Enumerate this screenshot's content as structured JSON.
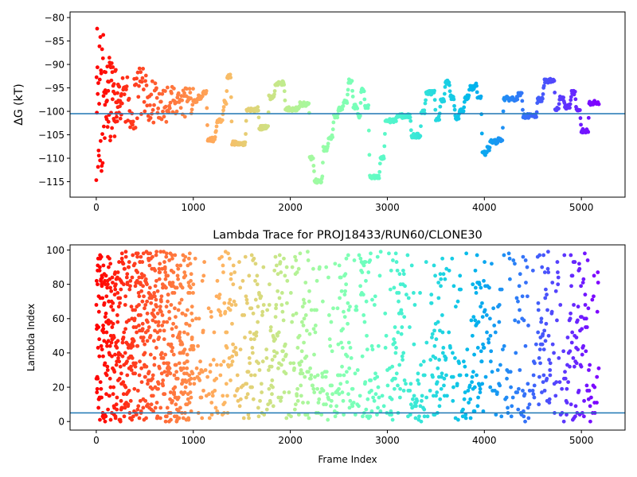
{
  "chart_data": [
    {
      "type": "scatter",
      "title": "",
      "xlabel": "",
      "ylabel": "ΔG (kT)",
      "xlim": [
        -270,
        5450
      ],
      "ylim": [
        -118.3,
        -78.8
      ],
      "xticks": [
        0,
        1000,
        2000,
        3000,
        4000,
        5000
      ],
      "xtick_labels": [
        "0",
        "1000",
        "2000",
        "3000",
        "4000",
        "5000"
      ],
      "yticks": [
        -115,
        -110,
        -105,
        -100,
        -95,
        -90,
        -85,
        -80
      ],
      "ytick_labels": [
        "−115",
        "−110",
        "−105",
        "−100",
        "−95",
        "−90",
        "−85",
        "−80"
      ],
      "reference_line_y": -100.5,
      "reference_line_color": "#1f77b4",
      "colormap": "rainbow (red at frame 0 → violet at last frame)",
      "frame_max": 5180,
      "trace_profile": [
        [
          250,
          -97
        ],
        [
          350,
          -98
        ],
        [
          450,
          -96
        ],
        [
          550,
          -97
        ],
        [
          650,
          -99
        ],
        [
          750,
          -97
        ],
        [
          850,
          -98
        ],
        [
          950,
          -97.5
        ],
        [
          1000,
          -98
        ],
        [
          1050,
          -97
        ],
        [
          1100,
          -96
        ],
        [
          1150,
          -106
        ],
        [
          1250,
          -102
        ],
        [
          1320,
          -98
        ],
        [
          1350,
          -92.5
        ],
        [
          1400,
          -106.8
        ],
        [
          1500,
          -106.8
        ],
        [
          1550,
          -99.7
        ],
        [
          1650,
          -99.5
        ],
        [
          1680,
          -103.5
        ],
        [
          1750,
          -103.5
        ],
        [
          1780,
          -97
        ],
        [
          1850,
          -94
        ],
        [
          1900,
          -94
        ],
        [
          1950,
          -99.5
        ],
        [
          2000,
          -99.5
        ],
        [
          2050,
          -99.5
        ],
        [
          2100,
          -98.5
        ],
        [
          2180,
          -98.5
        ],
        [
          2200,
          -110
        ],
        [
          2250,
          -114.8
        ],
        [
          2300,
          -114.8
        ],
        [
          2340,
          -108
        ],
        [
          2400,
          -105.5
        ],
        [
          2450,
          -101
        ],
        [
          2500,
          -99.5
        ],
        [
          2550,
          -98
        ],
        [
          2600,
          -93.5
        ],
        [
          2650,
          -99
        ],
        [
          2700,
          -101
        ],
        [
          2730,
          -95.5
        ],
        [
          2770,
          -99
        ],
        [
          2820,
          -114.1
        ],
        [
          2880,
          -114.1
        ],
        [
          2930,
          -110
        ],
        [
          2980,
          -102
        ],
        [
          3050,
          -102
        ],
        [
          3100,
          -101
        ],
        [
          3200,
          -101
        ],
        [
          3250,
          -105.2
        ],
        [
          3320,
          -105.2
        ],
        [
          3350,
          -100
        ],
        [
          3400,
          -96
        ],
        [
          3450,
          -96
        ],
        [
          3500,
          -101.5
        ],
        [
          3550,
          -97.5
        ],
        [
          3600,
          -93.8
        ],
        [
          3650,
          -97
        ],
        [
          3700,
          -101.3
        ],
        [
          3750,
          -100
        ],
        [
          3800,
          -97
        ],
        [
          3850,
          -95
        ],
        [
          3900,
          -94.5
        ],
        [
          3930,
          -97
        ],
        [
          3980,
          -109
        ],
        [
          4030,
          -108
        ],
        [
          4060,
          -106.5
        ],
        [
          4150,
          -106
        ],
        [
          4200,
          -97.3
        ],
        [
          4300,
          -97.3
        ],
        [
          4350,
          -96.5
        ],
        [
          4400,
          -101
        ],
        [
          4500,
          -101
        ],
        [
          4550,
          -97.5
        ],
        [
          4620,
          -93.5
        ],
        [
          4700,
          -93.5
        ],
        [
          4730,
          -99.5
        ],
        [
          4780,
          -97
        ],
        [
          4830,
          -99
        ],
        [
          4900,
          -96
        ],
        [
          4950,
          -100
        ],
        [
          5000,
          -104.2
        ],
        [
          5050,
          -104.2
        ],
        [
          5080,
          -98.2
        ],
        [
          5180,
          -98.2
        ]
      ]
    },
    {
      "type": "scatter",
      "title": "Lambda Trace for PROJ18433/RUN60/CLONE30",
      "xlabel": "Frame Index",
      "ylabel": "Lambda Index",
      "xlim": [
        -270,
        5450
      ],
      "ylim": [
        -5,
        103
      ],
      "xticks": [
        0,
        1000,
        2000,
        3000,
        4000,
        5000
      ],
      "xtick_labels": [
        "0",
        "1000",
        "2000",
        "3000",
        "4000",
        "5000"
      ],
      "yticks": [
        0,
        20,
        40,
        60,
        80,
        100
      ],
      "ytick_labels": [
        "0",
        "20",
        "40",
        "60",
        "80",
        "100"
      ],
      "reference_line_y": 5,
      "reference_line_color": "#1f77b4",
      "colormap": "rainbow (red at frame 0 → violet at last frame)",
      "frame_max": 5180,
      "lambda_range": [
        0,
        99
      ],
      "swept_regions_frames": [
        [
          1300,
          1420
        ],
        [
          1550,
          1680
        ],
        [
          1780,
          1960
        ],
        [
          2050,
          2200
        ],
        [
          2480,
          2620
        ],
        [
          2720,
          2830
        ],
        [
          3050,
          3180
        ],
        [
          3450,
          3580
        ],
        [
          3880,
          4000
        ],
        [
          4550,
          4680
        ],
        [
          4880,
          5050
        ]
      ]
    }
  ]
}
